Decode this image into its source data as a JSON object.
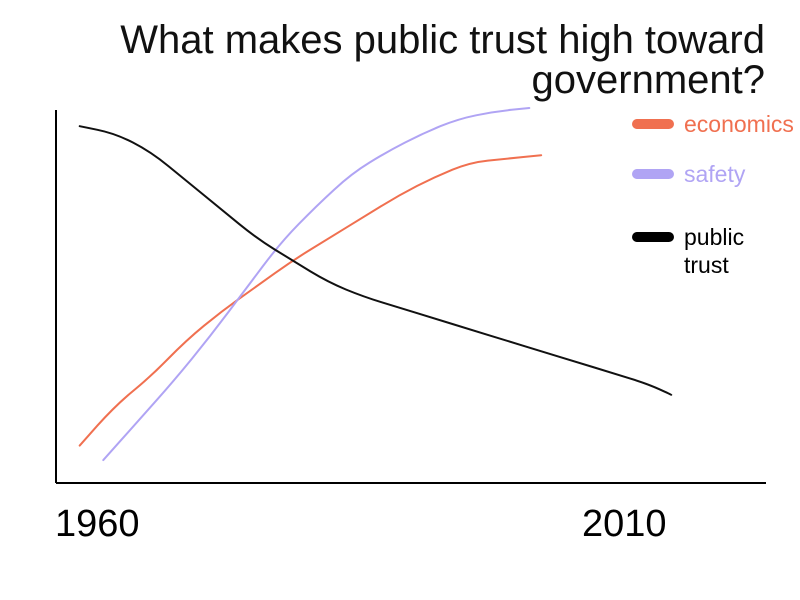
{
  "title": "What makes public trust high toward government?",
  "chart_data": {
    "type": "line",
    "x_ticks": [
      "1960",
      "2010"
    ],
    "xlim": [
      1958,
      2018
    ],
    "ylim": [
      0,
      100
    ],
    "series": [
      {
        "name": "economics",
        "color": "#f07050",
        "points": [
          [
            1960,
            7
          ],
          [
            1963,
            18
          ],
          [
            1966,
            26
          ],
          [
            1969,
            36
          ],
          [
            1972,
            44
          ],
          [
            1975,
            51
          ],
          [
            1978,
            58
          ],
          [
            1981,
            64
          ],
          [
            1984,
            70
          ],
          [
            1987,
            76
          ],
          [
            1990,
            81
          ],
          [
            1993,
            85
          ],
          [
            1996,
            86
          ],
          [
            1999,
            87
          ]
        ]
      },
      {
        "name": "safety",
        "color": "#b0a4f4",
        "points": [
          [
            1962,
            3
          ],
          [
            1965,
            14
          ],
          [
            1968,
            25
          ],
          [
            1971,
            37
          ],
          [
            1974,
            50
          ],
          [
            1977,
            63
          ],
          [
            1980,
            73
          ],
          [
            1983,
            82
          ],
          [
            1986,
            88
          ],
          [
            1989,
            93
          ],
          [
            1992,
            97
          ],
          [
            1995,
            99
          ],
          [
            1998,
            100
          ]
        ]
      },
      {
        "name": "public trust",
        "color": "#111111",
        "points": [
          [
            1960,
            95
          ],
          [
            1963,
            93
          ],
          [
            1966,
            88
          ],
          [
            1969,
            80
          ],
          [
            1972,
            72
          ],
          [
            1975,
            64
          ],
          [
            1978,
            58
          ],
          [
            1981,
            52
          ],
          [
            1984,
            48
          ],
          [
            1987,
            45
          ],
          [
            1990,
            42
          ],
          [
            1993,
            39
          ],
          [
            1996,
            36
          ],
          [
            1999,
            33
          ],
          [
            2002,
            30
          ],
          [
            2005,
            27
          ],
          [
            2008,
            24
          ],
          [
            2010,
            21
          ]
        ]
      }
    ],
    "legend": {
      "position": "right",
      "items": [
        {
          "label": "economics",
          "color": "#f07050"
        },
        {
          "label": "safety",
          "color": "#b0a4f4"
        },
        {
          "label": "public\ntrust",
          "color": "#000000"
        }
      ]
    },
    "grid": false
  }
}
